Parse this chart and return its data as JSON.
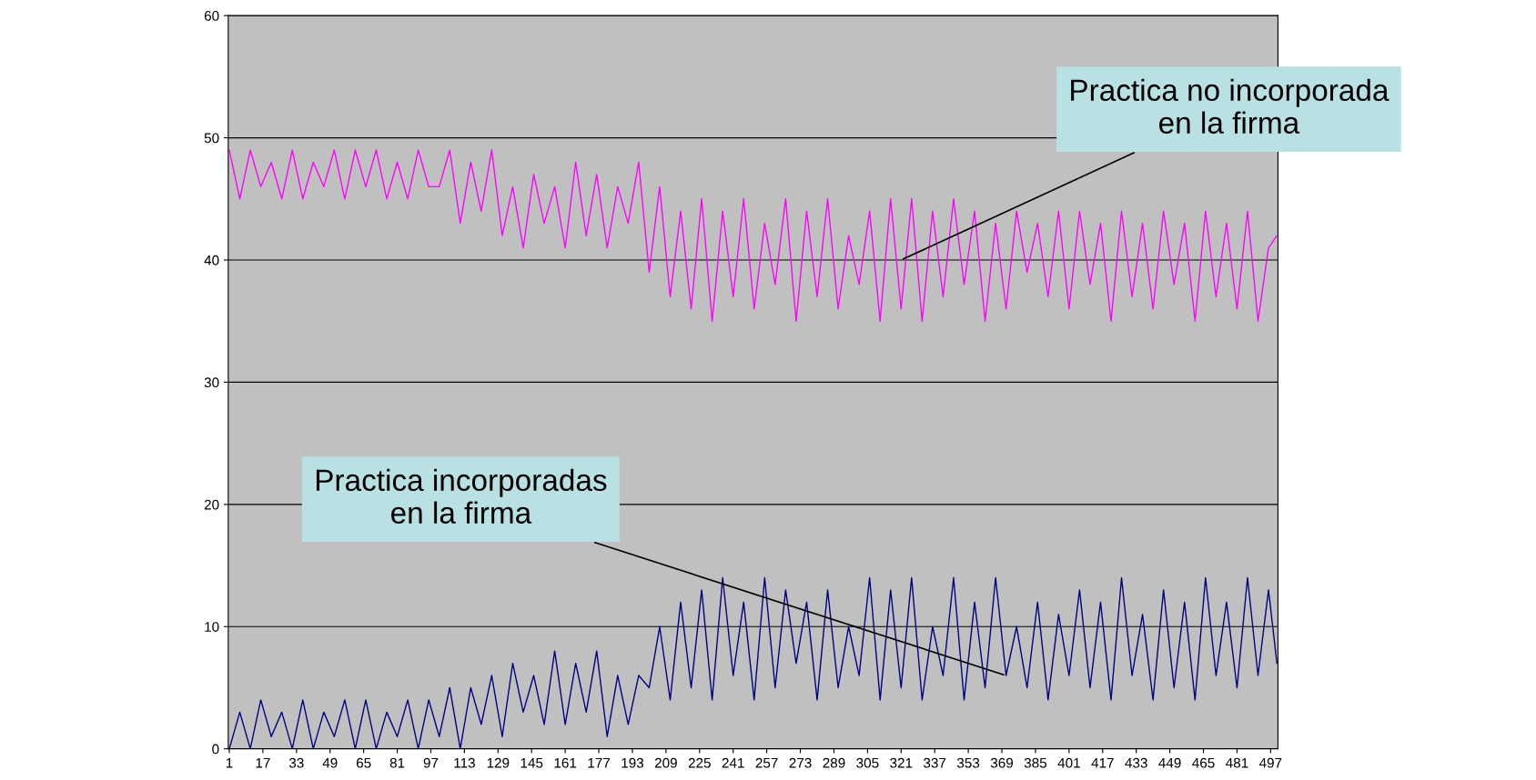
{
  "chart_data": {
    "type": "line",
    "x": [
      1,
      6,
      11,
      16,
      21,
      26,
      31,
      36,
      41,
      46,
      51,
      56,
      61,
      66,
      71,
      76,
      81,
      86,
      91,
      96,
      101,
      106,
      111,
      116,
      121,
      126,
      131,
      136,
      141,
      146,
      151,
      156,
      161,
      166,
      171,
      176,
      181,
      186,
      191,
      196,
      201,
      206,
      211,
      216,
      221,
      226,
      231,
      236,
      241,
      246,
      251,
      256,
      261,
      266,
      271,
      276,
      281,
      286,
      291,
      296,
      301,
      306,
      311,
      316,
      321,
      326,
      331,
      336,
      341,
      346,
      351,
      356,
      361,
      366,
      371,
      376,
      381,
      386,
      391,
      396,
      401,
      406,
      411,
      416,
      421,
      426,
      431,
      436,
      441,
      446,
      451,
      456,
      461,
      466,
      471,
      476,
      481,
      486,
      491,
      496,
      500
    ],
    "series": [
      {
        "color": "#ff00ff",
        "values": [
          49,
          45,
          49,
          46,
          48,
          45,
          49,
          45,
          48,
          46,
          49,
          45,
          49,
          46,
          49,
          45,
          48,
          45,
          49,
          46,
          46,
          49,
          43,
          48,
          44,
          49,
          42,
          46,
          41,
          47,
          43,
          46,
          41,
          48,
          42,
          47,
          41,
          46,
          43,
          48,
          39,
          46,
          37,
          44,
          36,
          45,
          35,
          44,
          37,
          45,
          36,
          43,
          38,
          45,
          35,
          44,
          37,
          45,
          36,
          42,
          38,
          44,
          35,
          45,
          36,
          45,
          35,
          44,
          37,
          45,
          38,
          44,
          35,
          43,
          36,
          44,
          39,
          43,
          37,
          44,
          36,
          44,
          38,
          43,
          35,
          44,
          37,
          43,
          36,
          44,
          38,
          43,
          35,
          44,
          37,
          43,
          36,
          44,
          35,
          41,
          42
        ]
      },
      {
        "color": "#000080",
        "values": [
          0,
          3,
          0,
          4,
          1,
          3,
          0,
          4,
          0,
          3,
          1,
          4,
          0,
          4,
          0,
          3,
          1,
          4,
          0,
          4,
          1,
          5,
          0,
          5,
          2,
          6,
          1,
          7,
          3,
          6,
          2,
          8,
          2,
          7,
          3,
          8,
          1,
          6,
          2,
          6,
          5,
          10,
          4,
          12,
          5,
          13,
          4,
          14,
          6,
          12,
          4,
          14,
          5,
          13,
          7,
          12,
          4,
          13,
          5,
          10,
          6,
          14,
          4,
          13,
          5,
          14,
          4,
          10,
          6,
          14,
          4,
          12,
          5,
          14,
          6,
          10,
          5,
          12,
          4,
          11,
          6,
          13,
          5,
          12,
          4,
          14,
          6,
          11,
          4,
          13,
          5,
          12,
          4,
          14,
          6,
          12,
          5,
          14,
          6,
          13,
          7
        ]
      }
    ],
    "xlim": [
      0.5,
      500.5
    ],
    "xticks": [
      1,
      17,
      33,
      49,
      65,
      81,
      97,
      113,
      129,
      145,
      161,
      177,
      193,
      209,
      225,
      241,
      257,
      273,
      289,
      305,
      321,
      337,
      353,
      369,
      385,
      401,
      417,
      433,
      449,
      465,
      481,
      497
    ],
    "ylim": [
      0,
      60
    ],
    "yticks": [
      0,
      10,
      20,
      30,
      40,
      50,
      60
    ],
    "grid": "y",
    "marker": "none",
    "line_style": "solid",
    "legend": false,
    "annotations": [
      {
        "text": "Practica no incorporada\nen la firma",
        "x": 321,
        "y": 40
      },
      {
        "text": "Practica incorporadas\nen la firma",
        "x": 371,
        "y": 6
      }
    ]
  }
}
